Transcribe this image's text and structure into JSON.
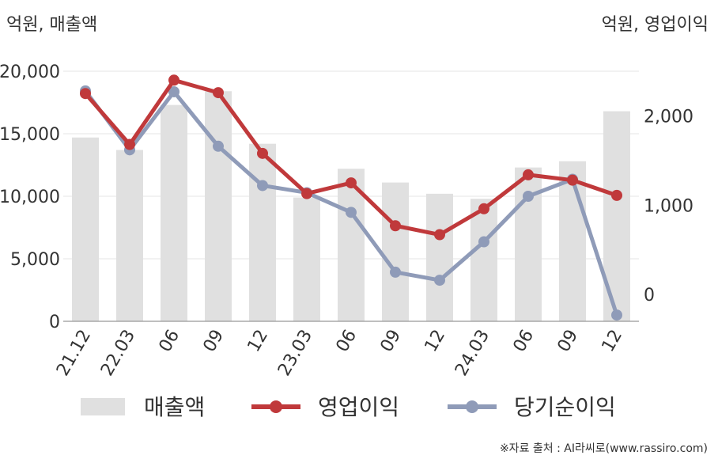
{
  "chart_data": {
    "type": "bar+line",
    "left_axis_label": "억원, 매출액",
    "right_axis_label": "억원, 영업이익",
    "categories": [
      "21.12",
      "22.03",
      "06",
      "09",
      "12",
      "23.03",
      "06",
      "09",
      "12",
      "24.03",
      "06",
      "09",
      "12"
    ],
    "y_left": {
      "min": 0,
      "max": 20000,
      "ticks": [
        "0",
        "5,000",
        "10,000",
        "15,000",
        "20,000"
      ]
    },
    "y_right": {
      "min": -300,
      "max": 2500,
      "ticks": [
        "0",
        "1,000",
        "2,000"
      ]
    },
    "grid": true,
    "legend_position": "bottom",
    "series": [
      {
        "name": "매출액",
        "kind": "bar",
        "axis": "left",
        "color": "#e0e0e0",
        "values": [
          14700,
          13700,
          17300,
          18400,
          14200,
          9900,
          12200,
          11100,
          10200,
          9800,
          12300,
          12800,
          16800
        ]
      },
      {
        "name": "영업이익",
        "kind": "line",
        "axis": "right",
        "color": "#c0393b",
        "values": [
          2250,
          1680,
          2400,
          2260,
          1580,
          1130,
          1250,
          770,
          670,
          960,
          1340,
          1280,
          1110
        ]
      },
      {
        "name": "당기순이익",
        "kind": "line",
        "axis": "right",
        "color": "#8f9bb8",
        "values": [
          2280,
          1620,
          2270,
          1660,
          1220,
          1140,
          920,
          250,
          160,
          590,
          1100,
          1290,
          -230
        ]
      }
    ],
    "source": "※자료 출처 : AI라씨로(www.rassiro.com)"
  }
}
